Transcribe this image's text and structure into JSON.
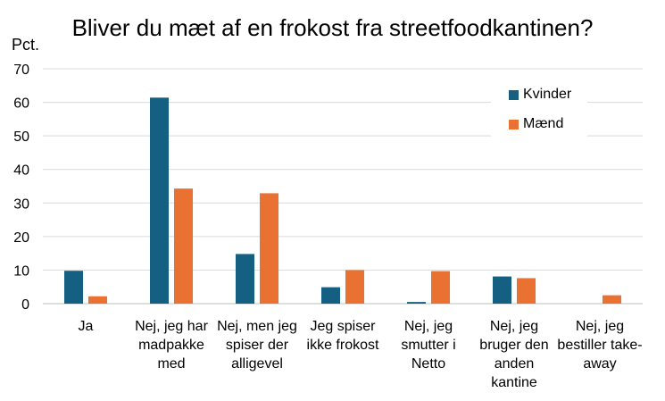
{
  "chart_data": {
    "type": "bar",
    "title": "Bliver du mæt af en frokost fra streetfoodkantinen?",
    "ylabel": "Pct.",
    "xlabel": "",
    "ylim": [
      0,
      70
    ],
    "yticks": [
      0,
      10,
      20,
      30,
      40,
      50,
      60,
      70
    ],
    "grid": true,
    "legend_position": "top-right",
    "categories": [
      "Ja",
      "Nej, jeg har madpakke med",
      "Nej, men jeg spiser der alligevel",
      "Jeg spiser ikke frokost",
      "Nej, jeg smutter i Netto",
      "Nej, jeg bruger den anden kantine",
      "Nej, jeg bestiller take-away"
    ],
    "series": [
      {
        "name": "Kvinder",
        "color": "#156082",
        "values": [
          9.8,
          61.4,
          14.8,
          4.9,
          0.5,
          8.1,
          0
        ]
      },
      {
        "name": "Mænd",
        "color": "#E97132",
        "values": [
          2.2,
          34.3,
          32.9,
          10.0,
          9.7,
          7.6,
          2.5
        ]
      }
    ]
  }
}
